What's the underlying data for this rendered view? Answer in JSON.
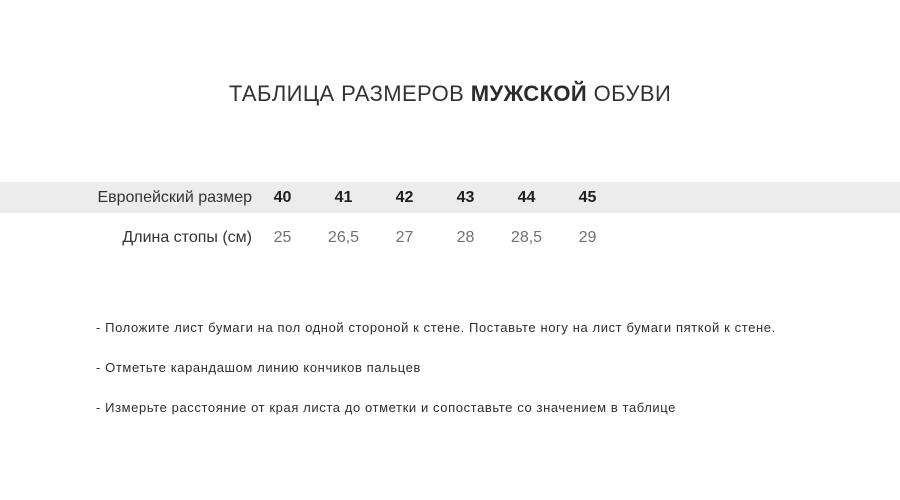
{
  "title": {
    "prefix": "ТАБЛИЦА РАЗМЕРОВ ",
    "highlight": "МУЖСКОЙ",
    "suffix": " ОБУВИ"
  },
  "table": {
    "rows": [
      {
        "label": "Европейский размер",
        "values": [
          "40",
          "41",
          "42",
          "43",
          "44",
          "45"
        ]
      },
      {
        "label": "Длина стопы (см)",
        "values": [
          "25",
          "26,5",
          "27",
          "28",
          "28,5",
          "29"
        ]
      }
    ]
  },
  "instructions": [
    "- Положите лист бумаги на пол одной стороной к стене. Поставьте ногу на лист бумаги пяткой к стене.",
    "- Отметьте карандашом линию кончиков пальцев",
    "- Измерьте расстояние от края листа до отметки и сопоставьте со значением в таблице"
  ],
  "colors": {
    "background": "#ffffff",
    "header_band": "#ececec",
    "title_text": "#333333",
    "size_text": "#1f1f1f",
    "length_text": "#717171",
    "instruction_text": "#2e2e2e"
  }
}
